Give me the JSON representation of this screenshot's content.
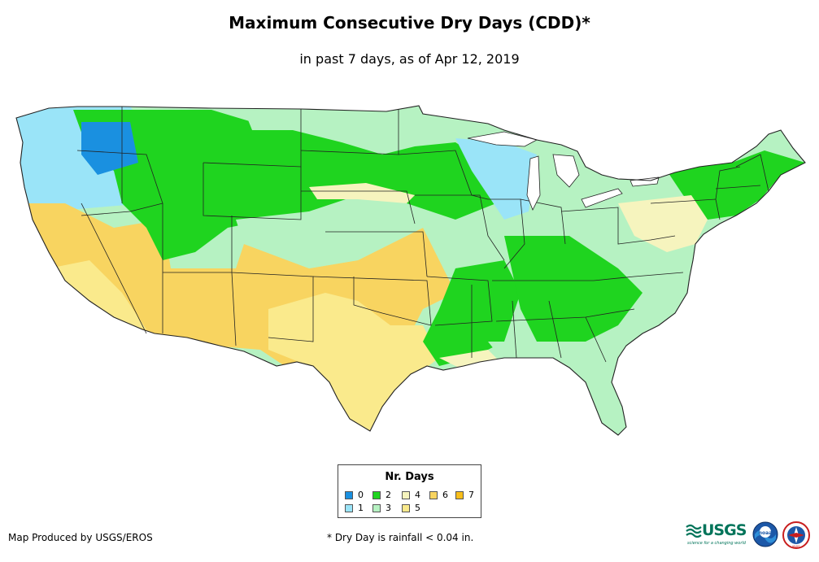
{
  "header": {
    "title": "Maximum Consecutive Dry Days (CDD)*",
    "subtitle": "in past 7 days, as of Apr 12, 2019"
  },
  "legend": {
    "title": "Nr. Days",
    "items": [
      {
        "label": "0",
        "color": "#1a90e0"
      },
      {
        "label": "1",
        "color": "#9ae4f8"
      },
      {
        "label": "2",
        "color": "#1fd41f"
      },
      {
        "label": "3",
        "color": "#b6f2c2"
      },
      {
        "label": "4",
        "color": "#f6f4be"
      },
      {
        "label": "5",
        "color": "#faea8c"
      },
      {
        "label": "6",
        "color": "#f8d460"
      },
      {
        "label": "7",
        "color": "#f8be1a"
      }
    ]
  },
  "footer": {
    "credit": "Map Produced by USGS/EROS",
    "note": "* Dry Day is rainfall < 0.04 in."
  },
  "logos": {
    "usgs_text": "USGS",
    "usgs_tagline": "science for a changing world",
    "noaa_text": "noaa",
    "nws_text": "NWS"
  }
}
